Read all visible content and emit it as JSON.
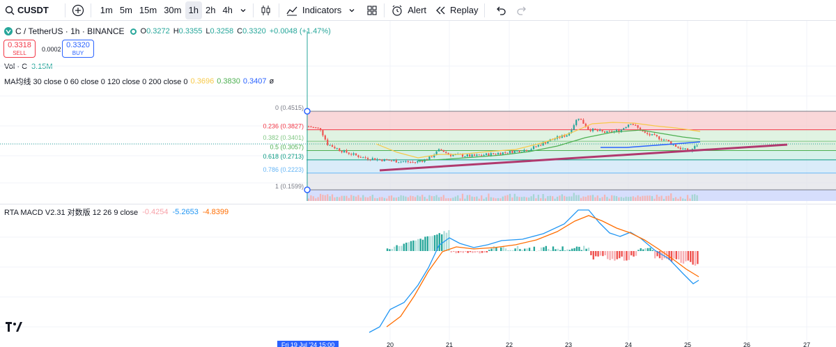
{
  "toolbar": {
    "symbol": "CUSDT",
    "timeframes": [
      "1m",
      "5m",
      "15m",
      "30m",
      "1h",
      "2h",
      "4h"
    ],
    "active_timeframe": "1h",
    "indicators_label": "Indicators",
    "alert_label": "Alert",
    "replay_label": "Replay"
  },
  "legend": {
    "title": "C / TetherUS · 1h · BINANCE",
    "open_key": "O",
    "open": "0.3272",
    "high_key": "H",
    "high": "0.3355",
    "low_key": "L",
    "low": "0.3258",
    "close_key": "C",
    "close": "0.3320",
    "change": "+0.0048 (+1.47%)",
    "sell_price": "0.3318",
    "sell_label": "SELL",
    "spread": "0.0002",
    "buy_price": "0.3320",
    "buy_label": "BUY",
    "vol_label": "Vol · C",
    "vol_value": "3.15M",
    "ma_label": "MA均线 30 close 0 60 close 0 120 close 0 200 close 0",
    "ma_values": [
      {
        "value": "0.3696",
        "color": "#f7c948"
      },
      {
        "value": "0.3830",
        "color": "#4caf50"
      },
      {
        "value": "0.3407",
        "color": "#2962ff"
      }
    ],
    "ma_extra": "ø",
    "macd_label": "RTA MACD V2.31 对数版 12 26 9 close",
    "macd_values": [
      {
        "value": "-0.4254",
        "color": "#f7a1a8"
      },
      {
        "value": "-5.2653",
        "color": "#2196f3"
      },
      {
        "value": "-4.8399",
        "color": "#ff6d00"
      }
    ]
  },
  "fib_levels": [
    {
      "label": "0 (0.4515)",
      "color": "#787b86",
      "level": 0
    },
    {
      "label": "0.236 (0.3827)",
      "color": "#f23645",
      "level": 0.236
    },
    {
      "label": "0.382 (0.3401)",
      "color": "#81c784",
      "level": 0.382
    },
    {
      "label": "0.5 (0.3057)",
      "color": "#4caf50",
      "level": 0.5
    },
    {
      "label": "0.618 (0.2713)",
      "color": "#089981",
      "level": 0.618
    },
    {
      "label": "0.786 (0.2223)",
      "color": "#64b5f6",
      "level": 0.786
    },
    {
      "label": "1 (0.1599)",
      "color": "#787b86",
      "level": 1
    }
  ],
  "time_axis": {
    "current_label": "Fri 19 Jul '24  15:00",
    "days": [
      "20",
      "21",
      "22",
      "23",
      "24",
      "25",
      "26",
      "27"
    ]
  },
  "logo_text": "17"
}
